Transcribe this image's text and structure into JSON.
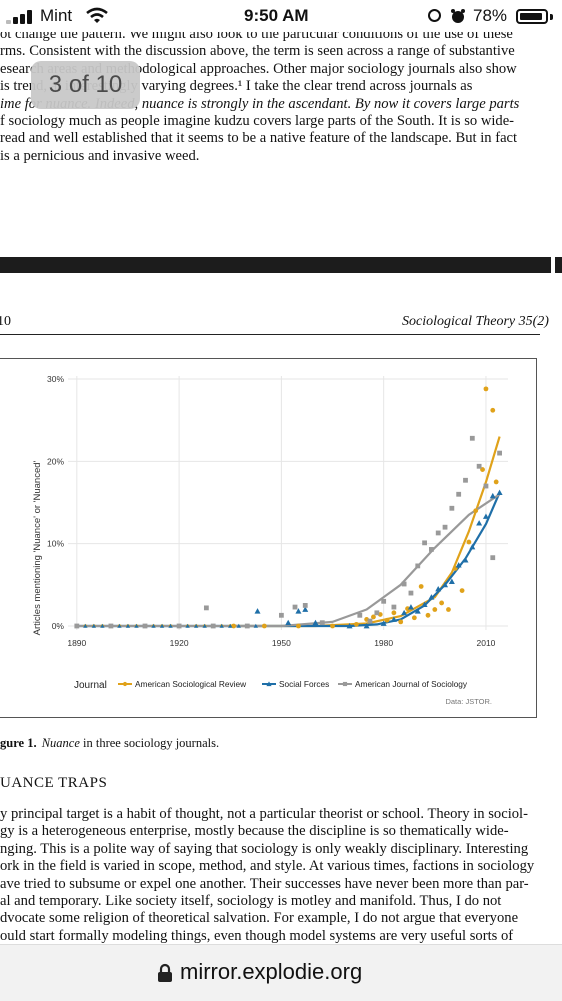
{
  "status_bar": {
    "carrier": "Mint",
    "time": "9:50 AM",
    "battery": "78%",
    "battery_level": 0.78,
    "icons": [
      "signal-icon",
      "wifi-icon",
      "orientation-lock-icon",
      "alarm-icon",
      "battery-icon"
    ]
  },
  "reader": {
    "page_counter": "3 of 10"
  },
  "top_paragraph": [
    "ot change the pattern. We might also look to the particular conditions of the use of these",
    "rms. Consistent with the discussion above, the term is seen across a range of substantive",
    "esearch areas and methodological approaches. Other major sociology journals also show",
    "is trend, at interestingly varying degrees.¹ I take the clear trend across journals as",
    "ime for nuance. Indeed, nuance is strongly in the ascendant. By now it covers large parts",
    "f sociology much as people imagine kudzu covers large parts of the South. It is so wide-",
    "read and well established that it seems to be a native feature of the landscape. But in fact",
    "is a pernicious and invasive weed."
  ],
  "page_header": {
    "page_number": "10",
    "journal": "Sociological Theory 35(2)"
  },
  "figure": {
    "caption_label": "gure 1.",
    "caption_text": "Nuance in three sociology journals.",
    "source": "Data: JSTOR.",
    "legend_title": "Journal"
  },
  "chart_data": {
    "type": "scatter",
    "ylabel": "Articles mentioning 'Nuance' or 'Nuanced'",
    "xlabel": "",
    "x_ticks": [
      1890,
      1920,
      1950,
      1980,
      2010
    ],
    "y_ticks": [
      "0%",
      "10%",
      "20%",
      "30%"
    ],
    "xlim": [
      1888,
      2015
    ],
    "ylim": [
      0,
      30
    ],
    "series": [
      {
        "name": "American Sociological Review",
        "color": "#e0a21a",
        "marker": "circle",
        "points": [
          [
            1936,
            0
          ],
          [
            1945,
            0
          ],
          [
            1955,
            0
          ],
          [
            1965,
            0
          ],
          [
            1972,
            0.2
          ],
          [
            1975,
            0.8
          ],
          [
            1977,
            1.1
          ],
          [
            1979,
            1.4
          ],
          [
            1981,
            0.7
          ],
          [
            1983,
            1.6
          ],
          [
            1985,
            0.5
          ],
          [
            1987,
            2.1
          ],
          [
            1989,
            1.0
          ],
          [
            1991,
            4.8
          ],
          [
            1993,
            1.3
          ],
          [
            1995,
            2.0
          ],
          [
            1997,
            2.8
          ],
          [
            1999,
            2.0
          ],
          [
            2001,
            7.0
          ],
          [
            2003,
            4.3
          ],
          [
            2005,
            10.2
          ],
          [
            2007,
            14.0
          ],
          [
            2009,
            19.0
          ],
          [
            2010,
            28.8
          ],
          [
            2012,
            26.2
          ],
          [
            2013,
            17.5
          ]
        ],
        "trend": [
          [
            1936,
            0
          ],
          [
            1960,
            0
          ],
          [
            1975,
            0.3
          ],
          [
            1985,
            1.2
          ],
          [
            1995,
            3.5
          ],
          [
            2000,
            6.5
          ],
          [
            2005,
            11.5
          ],
          [
            2010,
            17.5
          ],
          [
            2014,
            23.0
          ]
        ]
      },
      {
        "name": "Social Forces",
        "color": "#1f6fa8",
        "marker": "triangle",
        "points": [
          [
            1943,
            1.8
          ],
          [
            1952,
            0.4
          ],
          [
            1955,
            1.8
          ],
          [
            1957,
            2.0
          ],
          [
            1960,
            0.4
          ],
          [
            1970,
            0
          ],
          [
            1975,
            0
          ],
          [
            1980,
            0.3
          ],
          [
            1983,
            0.8
          ],
          [
            1986,
            1.6
          ],
          [
            1988,
            2.3
          ],
          [
            1990,
            1.8
          ],
          [
            1992,
            2.6
          ],
          [
            1994,
            3.5
          ],
          [
            1996,
            4.5
          ],
          [
            1998,
            5.0
          ],
          [
            2000,
            5.4
          ],
          [
            2002,
            7.4
          ],
          [
            2004,
            8.0
          ],
          [
            2006,
            9.6
          ],
          [
            2008,
            12.5
          ],
          [
            2010,
            13.3
          ],
          [
            2012,
            15.8
          ],
          [
            2014,
            16.2
          ]
        ],
        "trend": [
          [
            1890,
            0
          ],
          [
            1960,
            0
          ],
          [
            1970,
            0
          ],
          [
            1978,
            0.2
          ],
          [
            1985,
            0.8
          ],
          [
            1992,
            2.5
          ],
          [
            1998,
            5.0
          ],
          [
            2004,
            8.2
          ],
          [
            2010,
            12.4
          ],
          [
            2014,
            16.2
          ]
        ]
      },
      {
        "name": "American Journal of Sociology",
        "color": "#999999",
        "marker": "square",
        "points": [
          [
            1890,
            0
          ],
          [
            1900,
            0
          ],
          [
            1910,
            0
          ],
          [
            1920,
            0
          ],
          [
            1928,
            2.2
          ],
          [
            1930,
            0
          ],
          [
            1940,
            0
          ],
          [
            1950,
            1.3
          ],
          [
            1954,
            2.3
          ],
          [
            1957,
            2.5
          ],
          [
            1962,
            0.4
          ],
          [
            1973,
            1.3
          ],
          [
            1976,
            0.6
          ],
          [
            1978,
            1.6
          ],
          [
            1980,
            3.0
          ],
          [
            1983,
            2.3
          ],
          [
            1986,
            5.1
          ],
          [
            1988,
            4.0
          ],
          [
            1990,
            7.3
          ],
          [
            1992,
            10.1
          ],
          [
            1994,
            9.3
          ],
          [
            1996,
            11.3
          ],
          [
            1998,
            12.0
          ],
          [
            2000,
            14.3
          ],
          [
            2002,
            16.0
          ],
          [
            2004,
            17.7
          ],
          [
            2006,
            22.8
          ],
          [
            2008,
            19.4
          ],
          [
            2010,
            17.0
          ],
          [
            2012,
            8.3
          ],
          [
            2014,
            21.0
          ]
        ],
        "trend": [
          [
            1890,
            0
          ],
          [
            1950,
            0
          ],
          [
            1965,
            0.5
          ],
          [
            1975,
            2.0
          ],
          [
            1985,
            5.0
          ],
          [
            1995,
            9.5
          ],
          [
            2005,
            13.5
          ],
          [
            2014,
            16.0
          ]
        ]
      }
    ],
    "grid": true,
    "legend_position": "bottom"
  },
  "section": {
    "heading": "UANCE TRAPS"
  },
  "body_paragraph": [
    "y principal target is a habit of thought, not a particular theorist or school. Theory in sociol-",
    "gy is a heterogeneous enterprise, mostly because the discipline is so thematically wide-",
    "nging. This is a polite way of saying that sociology is only weakly disciplinary. Interesting",
    "ork in the field is varied in scope, method, and style. At various times, factions in sociology",
    "ave tried to subsume or expel one another. Their successes have never been more than par-",
    "al and temporary. Like society itself, sociology is motley and manifold. Thus, I do not",
    "dvocate some religion of theoretical salvation. For example, I do not argue that everyone",
    "ould start formally modeling things, even though model systems are very useful sorts of"
  ],
  "browser": {
    "url": "mirror.explodie.org"
  }
}
